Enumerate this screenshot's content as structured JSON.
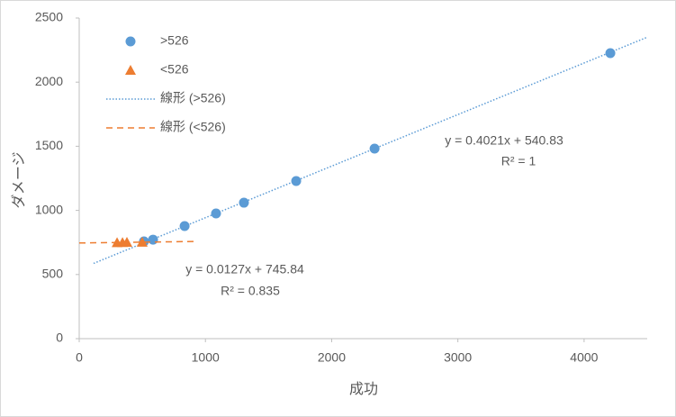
{
  "chart_data": {
    "type": "scatter",
    "x_label": "成功",
    "y_label": "ダメージ",
    "xlim": [
      0,
      4500
    ],
    "xticks": [
      0,
      1000,
      2000,
      3000,
      4000
    ],
    "ylim": [
      0,
      2500
    ],
    "yticks": [
      0,
      500,
      1000,
      1500,
      2000,
      2500
    ],
    "series": [
      {
        "name": ">526",
        "color": "#5b9bd5",
        "marker": "circle",
        "x": [
          513,
          585,
          835,
          1084,
          1305,
          1719,
          2340,
          4208
        ],
        "values": [
          758,
          772,
          878,
          976,
          1060,
          1229,
          1482,
          2226
        ],
        "trendline": {
          "name": "線形 (>526)",
          "style": "dotted",
          "slope": 0.4021,
          "intercept": 540.83,
          "x_start": 114,
          "x_end": 4500,
          "equation": "y = 0.4021x + 540.83",
          "r2": "R² = 1"
        }
      },
      {
        "name": "<526",
        "color": "#ed7d31",
        "marker": "triangle",
        "x": [
          300,
          343,
          378,
          499
        ],
        "values": [
          749,
          750,
          751,
          752
        ],
        "trendline": {
          "name": "線形 (<526)",
          "style": "dashed",
          "slope": 0.0127,
          "intercept": 745.84,
          "x_start": 0,
          "x_end": 906,
          "equation": "y = 0.0127x + 745.84",
          "r2": "R² = 0.835"
        }
      }
    ]
  }
}
